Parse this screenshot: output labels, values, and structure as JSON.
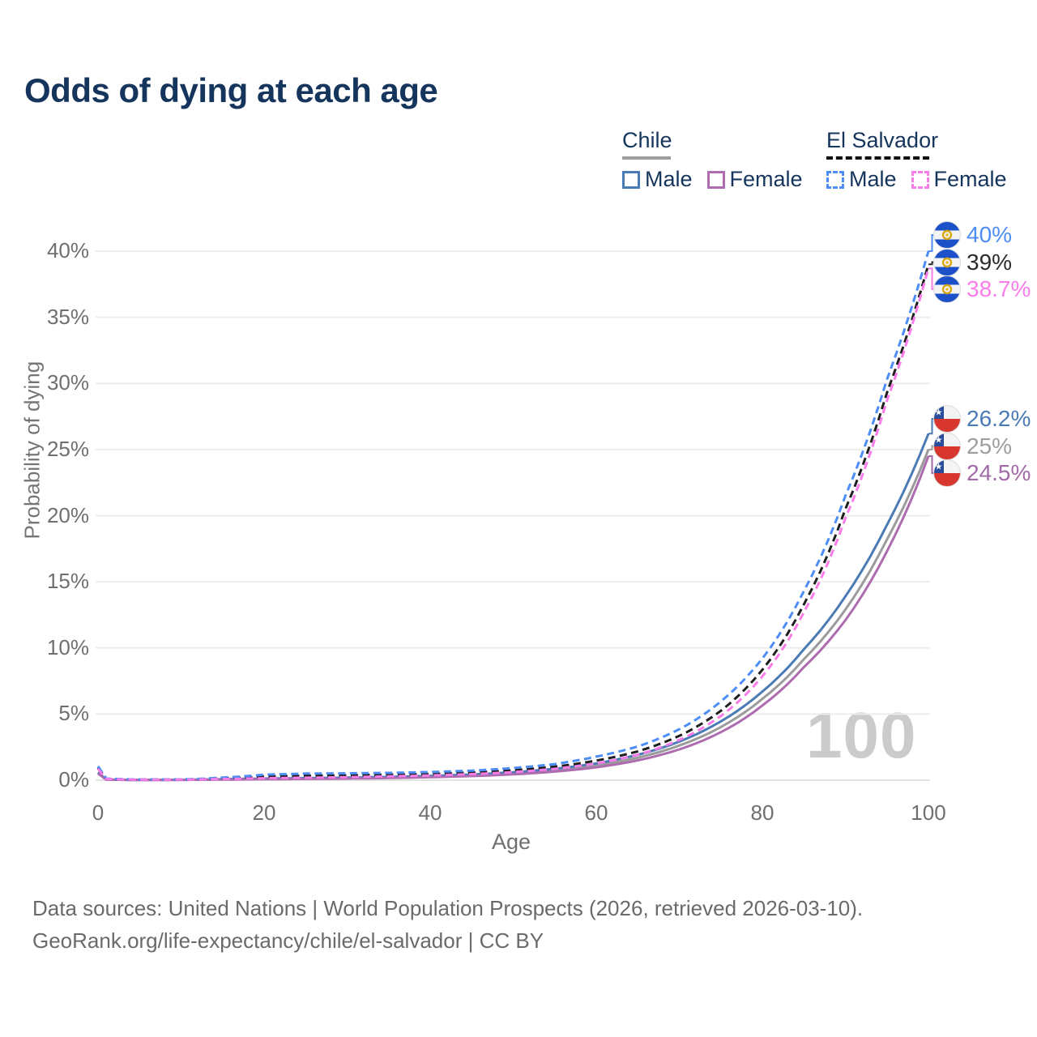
{
  "title": "Odds of dying at each age",
  "watermark": "100",
  "legend": {
    "groups": [
      {
        "name": "Chile",
        "line_style": "solid",
        "underline_color": "#9e9e9e",
        "items": [
          {
            "label": "Male",
            "color": "#4b7bb4"
          },
          {
            "label": "Female",
            "color": "#ad6cb0"
          }
        ]
      },
      {
        "name": "El Salvador",
        "line_style": "dashed",
        "underline_color": "#111111",
        "items": [
          {
            "label": "Male",
            "color": "#4d8df5"
          },
          {
            "label": "Female",
            "color": "#fa7ce9"
          }
        ]
      }
    ]
  },
  "axes": {
    "y_label": "Probability of dying",
    "y_ticks": [
      "0%",
      "5%",
      "10%",
      "15%",
      "20%",
      "25%",
      "30%",
      "35%",
      "40%"
    ],
    "x_label": "Age",
    "x_ticks": [
      "0",
      "20",
      "40",
      "60",
      "80",
      "100"
    ]
  },
  "footer": {
    "line1": "Data sources: United Nations | World Population Prospects (2026, retrieved 2026-03-10).",
    "line2": "GeoRank.org/life-expectancy/chile/el-salvador | CC BY"
  },
  "chart_data": {
    "type": "line",
    "title": "Odds of dying at each age",
    "xlabel": "Age",
    "ylabel": "Probability of dying",
    "xlim": [
      0,
      100
    ],
    "ylim": [
      0,
      40
    ],
    "y_unit": "%",
    "grid": "horizontal",
    "knot_ages": [
      0,
      1,
      5,
      10,
      15,
      20,
      25,
      30,
      35,
      40,
      45,
      50,
      55,
      60,
      65,
      70,
      75,
      80,
      85,
      90,
      95,
      100
    ],
    "series": [
      {
        "name": "Chile Both sexes",
        "country": "Chile",
        "sex": "Both",
        "color": "#9b9b9b",
        "dashed": false,
        "values": [
          0.55,
          0.04,
          0.02,
          0.026,
          0.062,
          0.1,
          0.125,
          0.16,
          0.205,
          0.27,
          0.37,
          0.52,
          0.75,
          1.11,
          1.7,
          2.62,
          4.02,
          6.15,
          9.15,
          12.9,
          18.2,
          25.0
        ]
      },
      {
        "name": "Chile Male",
        "country": "Chile",
        "sex": "Male",
        "color": "#4b7bb4",
        "dashed": false,
        "values": [
          0.6,
          0.045,
          0.022,
          0.03,
          0.075,
          0.125,
          0.155,
          0.195,
          0.245,
          0.32,
          0.43,
          0.6,
          0.86,
          1.27,
          1.92,
          2.92,
          4.45,
          6.7,
          9.9,
          13.9,
          19.3,
          26.2
        ]
      },
      {
        "name": "Chile Female",
        "country": "Chile",
        "sex": "Female",
        "color": "#ad6cb0",
        "dashed": false,
        "values": [
          0.5,
          0.036,
          0.018,
          0.022,
          0.048,
          0.072,
          0.095,
          0.125,
          0.165,
          0.225,
          0.31,
          0.44,
          0.65,
          0.97,
          1.5,
          2.33,
          3.63,
          5.65,
          8.55,
          12.1,
          17.3,
          24.5
        ]
      },
      {
        "name": "El Salvador Both sexes",
        "country": "El Salvador",
        "sex": "Both",
        "color": "#1f1f1f",
        "dashed": true,
        "values": [
          0.95,
          0.1,
          0.04,
          0.05,
          0.14,
          0.28,
          0.34,
          0.37,
          0.42,
          0.48,
          0.58,
          0.75,
          1.02,
          1.48,
          2.18,
          3.35,
          5.25,
          8.35,
          13.3,
          20.5,
          29.3,
          39.0
        ]
      },
      {
        "name": "El Salvador Male",
        "country": "El Salvador",
        "sex": "Male",
        "color": "#4d8df5",
        "dashed": true,
        "values": [
          1.05,
          0.12,
          0.05,
          0.06,
          0.2,
          0.42,
          0.5,
          0.52,
          0.55,
          0.62,
          0.72,
          0.92,
          1.22,
          1.78,
          2.55,
          3.85,
          5.95,
          9.2,
          14.3,
          21.5,
          30.3,
          40.0
        ]
      },
      {
        "name": "El Salvador Female",
        "country": "El Salvador",
        "sex": "Female",
        "color": "#fa7ce9",
        "dashed": true,
        "values": [
          0.85,
          0.09,
          0.035,
          0.04,
          0.09,
          0.15,
          0.19,
          0.23,
          0.29,
          0.36,
          0.46,
          0.61,
          0.86,
          1.27,
          1.93,
          3.05,
          4.85,
          7.85,
          12.7,
          19.8,
          28.7,
          38.7
        ]
      }
    ],
    "end_labels": [
      {
        "country": "El Salvador",
        "sex": "Male",
        "flag": "sv",
        "label": "40%",
        "pct": 40,
        "color": "#4d8df5"
      },
      {
        "country": "El Salvador",
        "sex": "Both",
        "flag": "sv",
        "label": "39%",
        "pct": 39,
        "color": "#2b2b2b"
      },
      {
        "country": "El Salvador",
        "sex": "Female",
        "flag": "sv",
        "label": "38.7%",
        "pct": 38.7,
        "color": "#fa7ce9"
      },
      {
        "country": "Chile",
        "sex": "Male",
        "flag": "cl",
        "label": "26.2%",
        "pct": 26.2,
        "color": "#4b7bb4"
      },
      {
        "country": "Chile",
        "sex": "Both",
        "flag": "cl",
        "label": "25%",
        "pct": 25,
        "color": "#9e9e9e"
      },
      {
        "country": "Chile",
        "sex": "Female",
        "flag": "cl",
        "label": "24.5%",
        "pct": 24.5,
        "color": "#a36aa8"
      }
    ],
    "legend_position": "top-right"
  }
}
